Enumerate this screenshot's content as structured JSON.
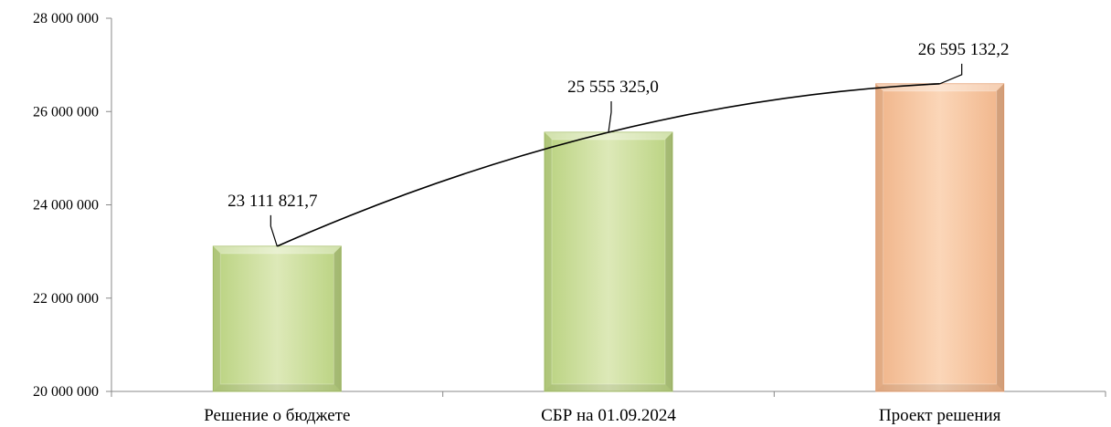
{
  "chart_data": {
    "type": "bar",
    "categories": [
      "Решение о бюджете",
      "СБР на 01.09.2024",
      "Проект решения"
    ],
    "values": [
      23111821.7,
      25555325.0,
      26595132.2
    ],
    "data_labels": [
      "23 111 821,7",
      "25 555 325,0",
      "26 595 132,2"
    ],
    "ylim": [
      20000000,
      28000000
    ],
    "y_ticks": [
      20000000,
      22000000,
      24000000,
      26000000,
      28000000
    ],
    "y_tick_labels": [
      "20 000 000",
      "22 000 000",
      "24 000 000",
      "26 000 000",
      "28 000 000"
    ],
    "grid": false,
    "trendline": true,
    "colors": [
      "#cfe0a2",
      "#cfe0a2",
      "#f8c8a0"
    ],
    "edge_colors": [
      "#a6c06a",
      "#a6c06a",
      "#e6a276"
    ]
  }
}
